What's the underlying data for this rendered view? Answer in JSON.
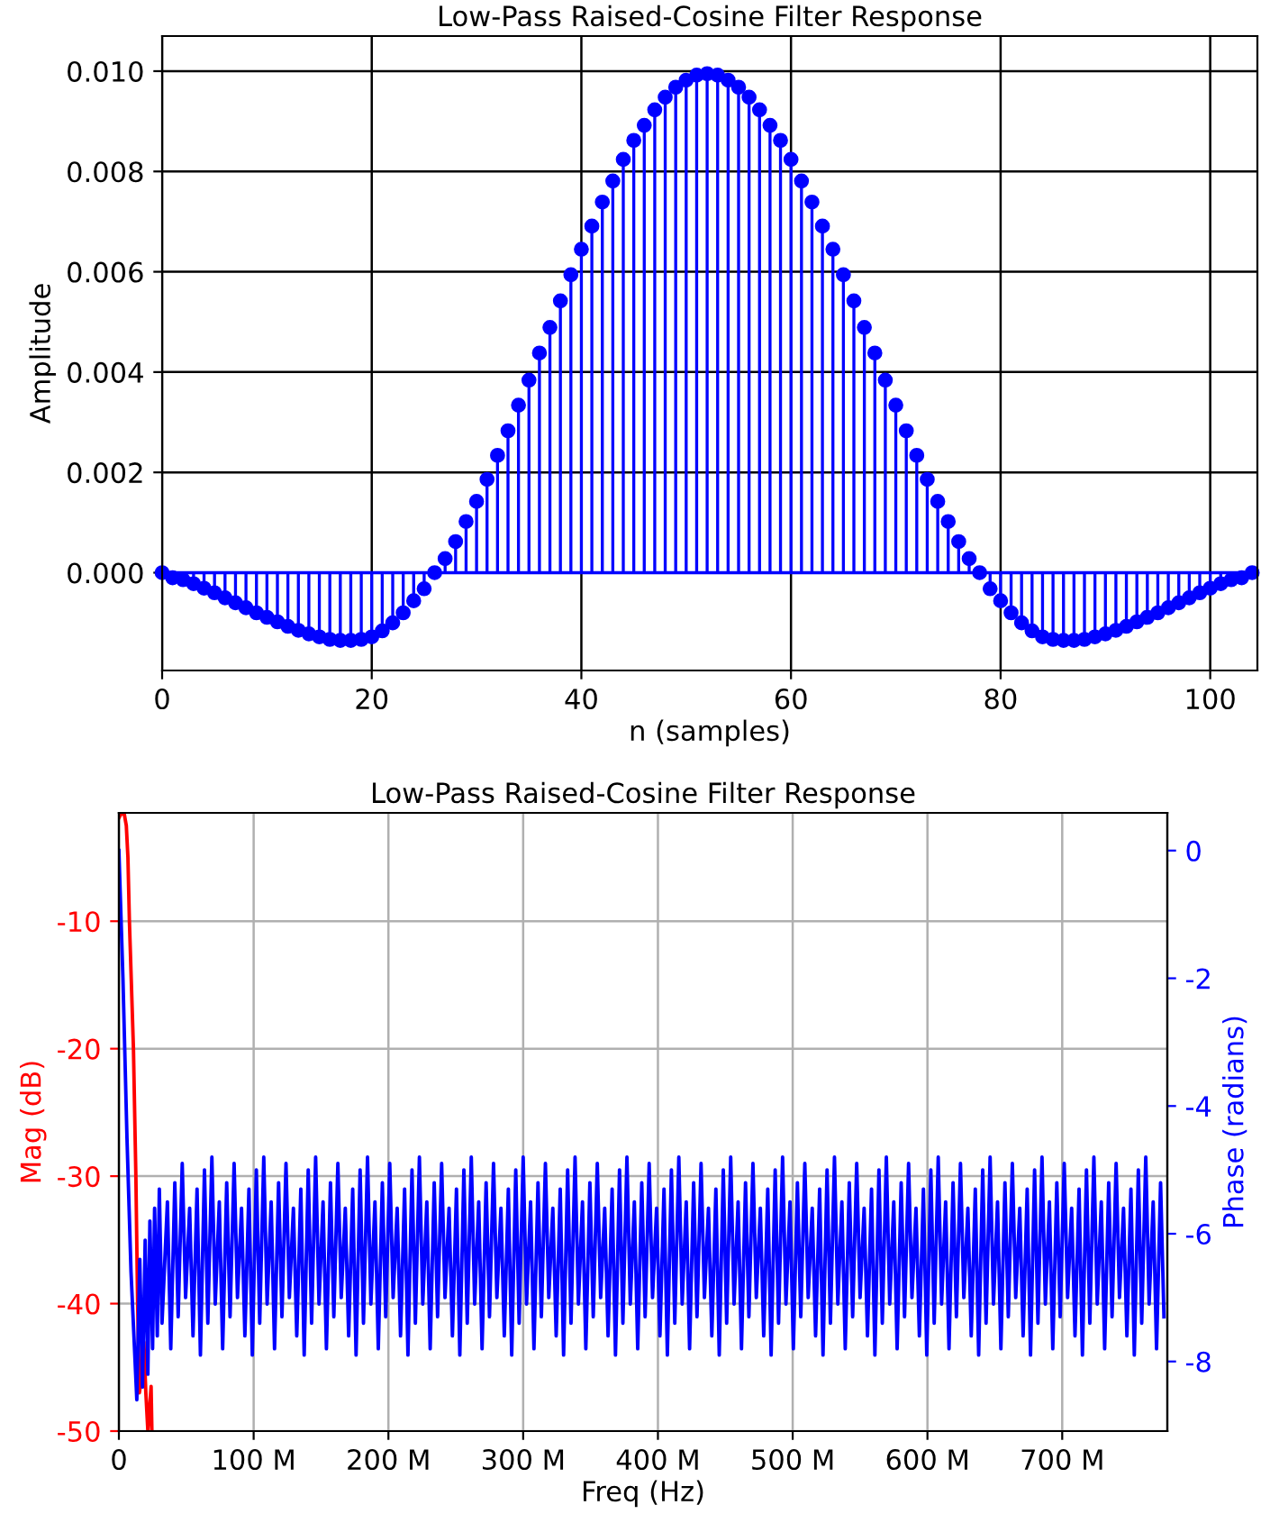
{
  "chart_data": [
    {
      "type": "lollipop",
      "title": "Low-Pass Raised-Cosine Filter Response",
      "xlabel": "n (samples)",
      "ylabel": "Amplitude",
      "x": [
        0,
        1,
        2,
        3,
        4,
        5,
        6,
        7,
        8,
        9,
        10,
        11,
        12,
        13,
        14,
        15,
        16,
        17,
        18,
        19,
        20,
        21,
        22,
        23,
        24,
        25,
        26,
        27,
        28,
        29,
        30,
        31,
        32,
        33,
        34,
        35,
        36,
        37,
        38,
        39,
        40,
        41,
        42,
        43,
        44,
        45,
        46,
        47,
        48,
        49,
        50,
        51,
        52,
        53,
        54,
        55,
        56,
        57,
        58,
        59,
        60,
        61,
        62,
        63,
        64,
        65,
        66,
        67,
        68,
        69,
        70,
        71,
        72,
        73,
        74,
        75,
        76,
        77,
        78,
        79,
        80,
        81,
        82,
        83,
        84,
        85,
        86,
        87,
        88,
        89,
        90,
        91,
        92,
        93,
        94,
        95,
        96,
        97,
        98,
        99,
        100,
        101,
        102,
        103,
        104
      ],
      "series": [
        {
          "color": "#0000ff",
          "values": [
            0.0,
            -0.0001,
            -0.00014,
            -0.00022,
            -0.00031,
            -0.0004,
            -0.0005,
            -0.0006,
            -0.0007,
            -0.0008,
            -0.00089,
            -0.00098,
            -0.00107,
            -0.00115,
            -0.00122,
            -0.00128,
            -0.00133,
            -0.00135,
            -0.00135,
            -0.00133,
            -0.00128,
            -0.00116,
            -0.001,
            -0.0008,
            -0.00056,
            -0.00032,
            0.0,
            0.00028,
            0.00062,
            0.00102,
            0.00142,
            0.00186,
            0.00234,
            0.00283,
            0.00334,
            0.00384,
            0.00438,
            0.00489,
            0.00542,
            0.00594,
            0.00645,
            0.00691,
            0.00739,
            0.00781,
            0.00824,
            0.00862,
            0.00892,
            0.00923,
            0.00948,
            0.00968,
            0.00982,
            0.00992,
            0.00995,
            0.00992,
            0.00982,
            0.00968,
            0.00948,
            0.00923,
            0.00892,
            0.00862,
            0.00824,
            0.00781,
            0.00739,
            0.00691,
            0.00645,
            0.00594,
            0.00542,
            0.00489,
            0.00438,
            0.00384,
            0.00334,
            0.00283,
            0.00234,
            0.00186,
            0.00142,
            0.00102,
            0.00062,
            0.00028,
            0.0,
            -0.00032,
            -0.00056,
            -0.0008,
            -0.001,
            -0.00116,
            -0.00128,
            -0.00133,
            -0.00135,
            -0.00135,
            -0.00133,
            -0.00128,
            -0.00122,
            -0.00115,
            -0.00107,
            -0.00098,
            -0.00089,
            -0.0008,
            -0.0007,
            -0.0006,
            -0.0005,
            -0.0004,
            -0.00031,
            -0.00022,
            -0.00014,
            -0.0001,
            0.0
          ]
        }
      ],
      "ref_lines": [
        {
          "axis": "y",
          "value": 0,
          "color": "#0000ff"
        }
      ],
      "marker": "circle",
      "xlim": [
        0,
        104.5
      ],
      "ylim": [
        -0.00195,
        0.0107
      ],
      "xticks": [
        0,
        20,
        40,
        60,
        80,
        100
      ],
      "yticks": [
        {
          "value": 0,
          "label": "0.000"
        },
        {
          "value": 0.002,
          "label": "0.002"
        },
        {
          "value": 0.004,
          "label": "0.004"
        },
        {
          "value": 0.006,
          "label": "0.006"
        },
        {
          "value": 0.008,
          "label": "0.008"
        },
        {
          "value": 0.01,
          "label": "0.010"
        }
      ],
      "grid": true
    },
    {
      "type": "line",
      "title": "Low-Pass Raised-Cosine Filter Response",
      "xlabel": "Freq (Hz)",
      "ylabel": "Mag (dB)",
      "y2label": "Phase (radians)",
      "series": [
        {
          "color": "#ff0000",
          "x": [
            0,
            1.5,
            4,
            5.5,
            6.7,
            7.8,
            10.8,
            12.6,
            13.9,
            15.2,
            16.5,
            18.5,
            20,
            21.5,
            23.9,
            24.5
          ],
          "values": [
            -1.9,
            -1.6,
            -1.6,
            -2.5,
            -5,
            -10,
            -20,
            -30,
            -40,
            -47,
            -46,
            -43,
            -47,
            -50,
            -46.5,
            -50
          ]
        },
        {
          "color": "#0000ff",
          "axis": "y2",
          "x": [
            0,
            3,
            6,
            9,
            13.3,
            15.5,
            17.5,
            19.5,
            21.5,
            23,
            25,
            26.5,
            28.5,
            30,
            32,
            36,
            38.5,
            41.5,
            44,
            47,
            49.5,
            52.5,
            55,
            58,
            60.5,
            63.5,
            66,
            69,
            71.5,
            74.5,
            77,
            80,
            82.5,
            85.5,
            88,
            91,
            93.5,
            96.5,
            99,
            102,
            104.5,
            107.5,
            110,
            113,
            115.5,
            118.5,
            121,
            124,
            126.5,
            129.5,
            132,
            135,
            137.5,
            140.5,
            143,
            146,
            148.5,
            151.5,
            154,
            157,
            159.5,
            162.5,
            165,
            168,
            170.5,
            173.5,
            176,
            179,
            181.5,
            184.5,
            187,
            190,
            192.5,
            195.5,
            198,
            201,
            203.5,
            206.5,
            209,
            212,
            214.5,
            217.5,
            220,
            223,
            225.5,
            228.5,
            231,
            234,
            236.5,
            239.5,
            242,
            245,
            247.5,
            250.5,
            253,
            256,
            258.5,
            261.5,
            264,
            267,
            269.5,
            272.5,
            275,
            278,
            280.5,
            283.5,
            286,
            289,
            291.5,
            294.5,
            297,
            300,
            302.5,
            305.5,
            308,
            311,
            313.5,
            316.5,
            319,
            322,
            324.5,
            327.5,
            330,
            333,
            335.5,
            338.5,
            341,
            344,
            346.5,
            349.5,
            352,
            355,
            357.5,
            360.5,
            363,
            366,
            368.5,
            371.5,
            374,
            377,
            379.5,
            382.5,
            385,
            388,
            390.5,
            393.5,
            396,
            399,
            401.5,
            404.5,
            407,
            410,
            412.5,
            415.5,
            418,
            421,
            423.5,
            426.5,
            429,
            432,
            434.5,
            437.5,
            440,
            443,
            445.5,
            448.5,
            451,
            454,
            456.5,
            459.5,
            462,
            465,
            467.5,
            470.5,
            473,
            476,
            478.5,
            481.5,
            484,
            487,
            489.5,
            492.5,
            495,
            498,
            500.5,
            503.5,
            506,
            509,
            511.5,
            514.5,
            517,
            520,
            522.5,
            525.5,
            528,
            531,
            533.5,
            536.5,
            539,
            542,
            544.5,
            547.5,
            550,
            553,
            555.5,
            558.5,
            561,
            564,
            566.5,
            569.5,
            572,
            575,
            577.5,
            580.5,
            583,
            586,
            588.5,
            591.5,
            594,
            597,
            599.5,
            602.5,
            605,
            608,
            610.5,
            613.5,
            616,
            619,
            621.5,
            624.5,
            627,
            630,
            632.5,
            635.5,
            638,
            641,
            643.5,
            646.5,
            649,
            652,
            654.5,
            657.5,
            660,
            663,
            665.5,
            668.5,
            671,
            674,
            676.5,
            679.5,
            682,
            685,
            687.5,
            690.5,
            693,
            696,
            698.5,
            701.5,
            704,
            707,
            709.5,
            712.5,
            715,
            718,
            720.5,
            723.5,
            726,
            729,
            731.5,
            734.5,
            737,
            740,
            742.5,
            745.5,
            748,
            751,
            753.5,
            756.5,
            759,
            762,
            764.5,
            767.5,
            770,
            773,
            775.5
          ],
          "values": [
            0,
            -2,
            -4.5,
            -6.6,
            -8.6,
            -6.4,
            -8.4,
            -6.1,
            -8.2,
            -5.8,
            -7.8,
            -5.6,
            -7.6,
            -5.3,
            -7.4,
            -5.5,
            -7.8,
            -5.2,
            -7.3,
            -4.9,
            -7.0,
            -5.6,
            -7.6,
            -5.3,
            -7.9,
            -5.0,
            -7.4,
            -4.8,
            -7.1,
            -5.5,
            -7.8,
            -5.2,
            -7.3,
            -4.9,
            -7.0,
            -5.6,
            -7.6,
            -5.3,
            -7.9,
            -5.0,
            -7.4,
            -4.8,
            -7.1,
            -5.5,
            -7.8,
            -5.2,
            -7.3,
            -4.9,
            -7.0,
            -5.6,
            -7.6,
            -5.3,
            -7.9,
            -5.0,
            -7.4,
            -4.8,
            -7.1,
            -5.5,
            -7.8,
            -5.2,
            -7.3,
            -4.9,
            -7.0,
            -5.6,
            -7.6,
            -5.3,
            -7.9,
            -5.0,
            -7.4,
            -4.8,
            -7.1,
            -5.5,
            -7.8,
            -5.2,
            -7.3,
            -4.9,
            -7.0,
            -5.6,
            -7.6,
            -5.3,
            -7.9,
            -5.0,
            -7.4,
            -4.8,
            -7.1,
            -5.5,
            -7.8,
            -5.2,
            -7.3,
            -4.9,
            -7.0,
            -5.6,
            -7.6,
            -5.3,
            -7.9,
            -5.0,
            -7.4,
            -4.8,
            -7.1,
            -5.5,
            -7.8,
            -5.2,
            -7.3,
            -4.9,
            -7.0,
            -5.6,
            -7.6,
            -5.3,
            -7.9,
            -5.0,
            -7.4,
            -4.8,
            -7.1,
            -5.5,
            -7.8,
            -5.2,
            -7.3,
            -4.9,
            -7.0,
            -5.6,
            -7.6,
            -5.3,
            -7.9,
            -5.0,
            -7.4,
            -4.8,
            -7.1,
            -5.5,
            -7.8,
            -5.2,
            -7.3,
            -4.9,
            -7.0,
            -5.6,
            -7.6,
            -5.3,
            -7.9,
            -5.0,
            -7.4,
            -4.8,
            -7.1,
            -5.5,
            -7.8,
            -5.2,
            -7.3,
            -4.9,
            -7.0,
            -5.6,
            -7.6,
            -5.3,
            -7.9,
            -5.0,
            -7.4,
            -4.8,
            -7.1,
            -5.5,
            -7.8,
            -5.2,
            -7.3,
            -4.9,
            -7.0,
            -5.6,
            -7.6,
            -5.3,
            -7.9,
            -5.0,
            -7.4,
            -4.8,
            -7.1,
            -5.5,
            -7.8,
            -5.2,
            -7.3,
            -4.9,
            -7.0,
            -5.6,
            -7.6,
            -5.3,
            -7.9,
            -5.0,
            -7.4,
            -4.8,
            -7.1,
            -5.5,
            -7.8,
            -5.2,
            -7.3,
            -4.9,
            -7.0,
            -5.6,
            -7.6,
            -5.3,
            -7.9,
            -5.0,
            -7.4,
            -4.8,
            -7.1,
            -5.5,
            -7.8,
            -5.2,
            -7.3,
            -4.9,
            -7.0,
            -5.6,
            -7.6,
            -5.3,
            -7.9,
            -5.0,
            -7.4,
            -4.8,
            -7.1,
            -5.5,
            -7.8,
            -5.2,
            -7.3,
            -4.9,
            -7.0,
            -5.6,
            -7.6,
            -5.3,
            -7.9,
            -5.0,
            -7.4,
            -4.8,
            -7.1,
            -5.5,
            -7.8,
            -5.2,
            -7.3,
            -4.9,
            -7.0,
            -5.6,
            -7.6,
            -5.3,
            -7.9,
            -5.0,
            -7.4,
            -4.8,
            -7.1,
            -5.5,
            -7.8,
            -5.2,
            -7.3,
            -4.9,
            -7.0,
            -5.6,
            -7.6,
            -5.3,
            -7.9,
            -5.0,
            -7.4,
            -4.8,
            -7.1,
            -5.5,
            -7.8,
            -5.2,
            -7.3,
            -4.9,
            -7.0,
            -5.6,
            -7.6,
            -5.3,
            -7.9,
            -5.0,
            -7.4,
            -4.8,
            -7.1,
            -5.5,
            -7.8,
            -5.2,
            -7.3,
            -4.9,
            -7.0,
            -5.6,
            -7.6,
            -5.3,
            -7.9,
            -5.0,
            -7.4,
            -4.8,
            -7.1,
            -5.5,
            -7.8,
            -5.2,
            -7.3
          ]
        }
      ],
      "xlim": [
        0,
        778
      ],
      "ylim": [
        -50,
        -1.5
      ],
      "y2lim": [
        -9.09,
        0.59
      ],
      "xticks": [
        0,
        {
          "value": 100,
          "label": "100 M"
        },
        {
          "value": 200,
          "label": "200 M"
        },
        {
          "value": 300,
          "label": "300 M"
        },
        {
          "value": 400,
          "label": "400 M"
        },
        {
          "value": 500,
          "label": "500 M"
        },
        {
          "value": 600,
          "label": "600 M"
        },
        {
          "value": 700,
          "label": "700 M"
        }
      ],
      "yticks": [
        -50,
        -40,
        -30,
        -20,
        -10
      ],
      "y2ticks": [
        -8,
        -6,
        -4,
        -2,
        0
      ],
      "grid": true
    }
  ]
}
